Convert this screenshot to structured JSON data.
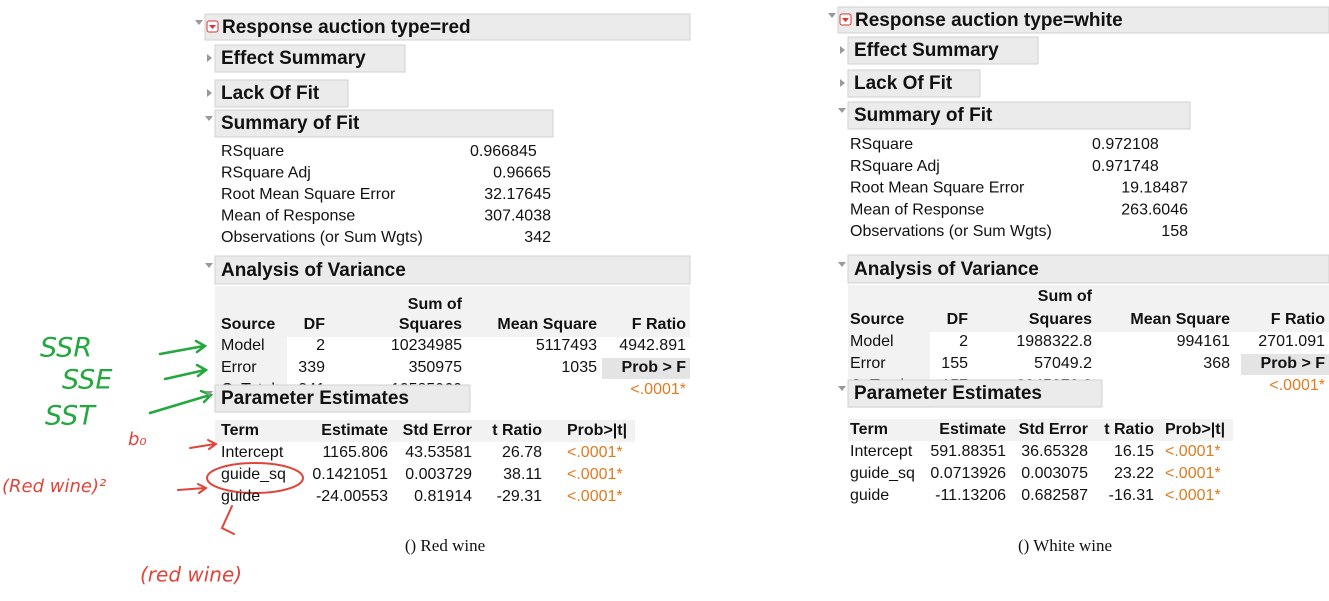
{
  "panels": [
    {
      "title": "Response auction type=red",
      "collapsed": [
        "Effect Summary",
        "Lack Of Fit"
      ],
      "summary_of_fit": {
        "title": "Summary of Fit",
        "rows": [
          [
            "RSquare",
            "0.966845"
          ],
          [
            "RSquare Adj",
            "0.96665"
          ],
          [
            "Root Mean Square Error",
            "32.17645"
          ],
          [
            "Mean of Response",
            "307.4038"
          ],
          [
            "Observations (or Sum Wgts)",
            "342"
          ]
        ]
      },
      "anova": {
        "title": "Analysis of Variance",
        "sum_of": "Sum of",
        "columns": [
          "Source",
          "DF",
          "Squares",
          "Mean Square",
          "F Ratio"
        ],
        "rows": [
          [
            "Model",
            "2",
            "10234985",
            "5117493",
            "4942.891"
          ],
          [
            "Error",
            "339",
            "350975",
            "1035"
          ],
          [
            "C. Total",
            "341",
            "10585960"
          ]
        ],
        "prob_label": "Prob > F",
        "p_value": "<.0001*"
      },
      "parameter_estimates": {
        "title": "Parameter Estimates",
        "columns": [
          "Term",
          "Estimate",
          "Std Error",
          "t Ratio",
          "Prob>|t|"
        ],
        "rows": [
          [
            "Intercept",
            "1165.806",
            "43.53581",
            "26.78",
            "<.0001*"
          ],
          [
            "guide_sq",
            "0.1421051",
            "0.003729",
            "38.11",
            "<.0001*"
          ],
          [
            "guide",
            "-24.00553",
            "0.81914",
            "-29.31",
            "<.0001*"
          ]
        ]
      },
      "caption": "() Red wine"
    },
    {
      "title": "Response auction type=white",
      "collapsed": [
        "Effect Summary",
        "Lack Of Fit"
      ],
      "summary_of_fit": {
        "title": "Summary of Fit",
        "rows": [
          [
            "RSquare",
            "0.972108"
          ],
          [
            "RSquare Adj",
            "0.971748"
          ],
          [
            "Root Mean Square Error",
            "19.18487"
          ],
          [
            "Mean of Response",
            "263.6046"
          ],
          [
            "Observations (or Sum Wgts)",
            "158"
          ]
        ]
      },
      "anova": {
        "title": "Analysis of Variance",
        "sum_of": "Sum of",
        "columns": [
          "Source",
          "DF",
          "Squares",
          "Mean Square",
          "F Ratio"
        ],
        "rows": [
          [
            "Model",
            "2",
            "1988322.8",
            "994161",
            "2701.091"
          ],
          [
            "Error",
            "155",
            "57049.2",
            "368"
          ],
          [
            "C. Total",
            "157",
            "2045372.0"
          ]
        ],
        "prob_label": "Prob > F",
        "p_value": "<.0001*"
      },
      "parameter_estimates": {
        "title": "Parameter Estimates",
        "columns": [
          "Term",
          "Estimate",
          "Std Error",
          "t Ratio",
          "Prob>|t|"
        ],
        "rows": [
          [
            "Intercept",
            "591.88351",
            "36.65328",
            "16.15",
            "<.0001*"
          ],
          [
            "guide_sq",
            "0.0713926",
            "0.003075",
            "23.22",
            "<.0001*"
          ],
          [
            "guide",
            "-11.13206",
            "0.682587",
            "-16.31",
            "<.0001*"
          ]
        ]
      },
      "caption": "() White wine"
    }
  ],
  "annotations": [
    {
      "text": "SSR"
    },
    {
      "text": "SSE"
    },
    {
      "text": "SST"
    },
    {
      "text": "b₀"
    },
    {
      "text": "(Red wine)²"
    },
    {
      "text": "(red wine)"
    }
  ]
}
